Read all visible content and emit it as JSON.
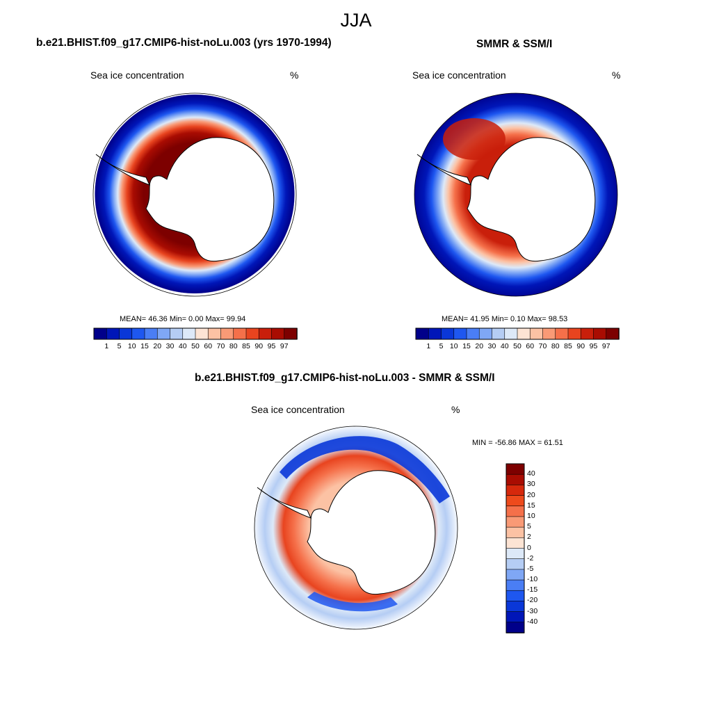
{
  "figure": {
    "season": "JJA"
  },
  "panel_model": {
    "title": "b.e21.BHIST.f09_g17.CMIP6-hist-noLu.003 (yrs 1970-1994)",
    "left_label": "Sea ice concentration",
    "right_label": "%",
    "stats": "MEAN=  46.36  Min=   0.00  Max=  99.94"
  },
  "panel_obs": {
    "title": "SMMR & SSM/I",
    "left_label": "Sea ice concentration",
    "right_label": "%",
    "stats": "MEAN=  41.95  Min=   0.10  Max=  98.53"
  },
  "panel_diff": {
    "title": "b.e21.BHIST.f09_g17.CMIP6-hist-noLu.003 - SMMR & SSM/I",
    "left_label": "Sea ice concentration",
    "right_label": "%",
    "minmax": "MIN = -56.86 MAX =  61.51"
  },
  "colorbar_conc": {
    "ticks": [
      "1",
      "5",
      "10",
      "15",
      "20",
      "30",
      "40",
      "50",
      "60",
      "70",
      "80",
      "85",
      "90",
      "95",
      "97"
    ],
    "colors": [
      "#00008a",
      "#0016b8",
      "#0a37d8",
      "#1e57f0",
      "#4a7ef5",
      "#7fa7f5",
      "#b5cdf4",
      "#dde9f8",
      "#fde4d4",
      "#fcc2a4",
      "#f99a76",
      "#f5704a",
      "#e8441f",
      "#c91f0b",
      "#a90c02",
      "#7d0000"
    ]
  },
  "colorbar_diff": {
    "ticks": [
      "40",
      "30",
      "20",
      "15",
      "10",
      "5",
      "2",
      "0",
      "-2",
      "-5",
      "-10",
      "-15",
      "-20",
      "-30",
      "-40"
    ],
    "colors": [
      "#7d0000",
      "#a90c02",
      "#d6280c",
      "#ee4a1c",
      "#f5704a",
      "#f99a76",
      "#fcc2a4",
      "#fde4d4",
      "#dde9f8",
      "#b5cdf4",
      "#7fa7f5",
      "#4a7ef5",
      "#1e57f0",
      "#0a37d8",
      "#0016b8",
      "#00008a"
    ]
  },
  "chart_data": [
    {
      "type": "heatmap",
      "projection": "south polar stereographic",
      "title": "b.e21.BHIST.f09_g17.CMIP6-hist-noLu.003 (yrs 1970-1994)",
      "variable": "Sea ice concentration",
      "units": "%",
      "mean": 46.36,
      "min": 0.0,
      "max": 99.94,
      "levels": [
        1,
        5,
        10,
        15,
        20,
        30,
        40,
        50,
        60,
        70,
        80,
        85,
        90,
        95,
        97
      ]
    },
    {
      "type": "heatmap",
      "projection": "south polar stereographic",
      "title": "SMMR & SSM/I",
      "variable": "Sea ice concentration",
      "units": "%",
      "mean": 41.95,
      "min": 0.1,
      "max": 98.53,
      "levels": [
        1,
        5,
        10,
        15,
        20,
        30,
        40,
        50,
        60,
        70,
        80,
        85,
        90,
        95,
        97
      ]
    },
    {
      "type": "heatmap",
      "projection": "south polar stereographic",
      "title": "b.e21.BHIST.f09_g17.CMIP6-hist-noLu.003 - SMMR & SSM/I",
      "variable": "Sea ice concentration",
      "units": "%",
      "min": -56.86,
      "max": 61.51,
      "levels": [
        -40,
        -30,
        -20,
        -15,
        -10,
        -5,
        -2,
        0,
        2,
        5,
        10,
        15,
        20,
        30,
        40
      ]
    }
  ]
}
